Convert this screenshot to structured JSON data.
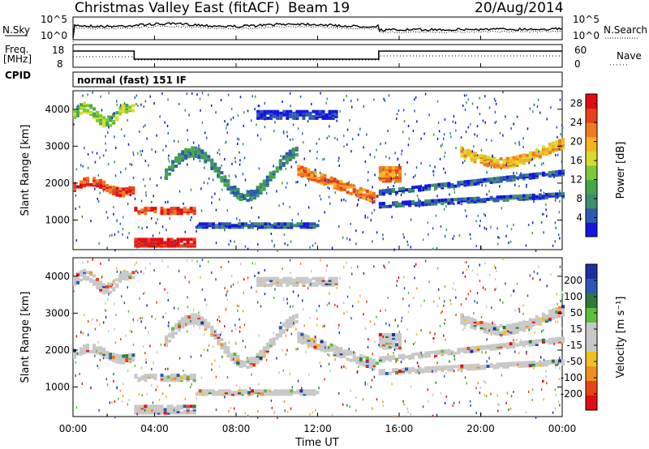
{
  "header": {
    "title": "Christmas Valley East (fitACF)",
    "beam": "Beam 19",
    "date": "20/Aug/2014"
  },
  "top_panels": {
    "nsky_label": "N.Sky",
    "nsearch_label": "N.Search",
    "freq_label_line1": "Freq.",
    "freq_label_line2": "[MHz]",
    "nave_label": "Nave",
    "cpid_label": "CPID",
    "cpid_value": "normal (fast) 151 IF",
    "noise_left_ticks": [
      "10^5",
      "10^0"
    ],
    "noise_right_ticks": [
      "10^5",
      "10^0"
    ],
    "freq_left_ticks": [
      "18",
      "8"
    ],
    "freq_right_ticks": [
      "60",
      "0"
    ]
  },
  "colors": {
    "power_scale": [
      "#1414e0",
      "#2b5bb0",
      "#3f8f6a",
      "#45a648",
      "#7ec83c",
      "#d8dc2a",
      "#f6b221",
      "#f07a1e",
      "#e8401a",
      "#e00d12"
    ],
    "velocity_scale": [
      "#1e2fa6",
      "#2c57b5",
      "#2f7a3a",
      "#5bbf3a",
      "#c8c8c8",
      "#c8c8c8",
      "#f0c020",
      "#f09020",
      "#e84418",
      "#e00d12"
    ]
  },
  "chart_data": [
    {
      "type": "heatmap",
      "name": "power",
      "ylabel": "Slant Range [km]",
      "yticks": [
        "1000",
        "2000",
        "3000",
        "4000"
      ],
      "ylim": [
        200,
        4500
      ],
      "colorbar_label": "Power [dB]",
      "colorbar_ticks": [
        "4",
        "8",
        "12",
        "16",
        "20",
        "24",
        "28"
      ],
      "colorbar_range": [
        0,
        30
      ]
    },
    {
      "type": "heatmap",
      "name": "velocity",
      "ylabel": "Slant Range [km]",
      "yticks": [
        "1000",
        "2000",
        "3000",
        "4000"
      ],
      "ylim": [
        200,
        4500
      ],
      "colorbar_label": "Velocity [m s⁻¹]",
      "colorbar_ticks": [
        "200",
        "100",
        "50",
        "15",
        "-15",
        "-50",
        "-100",
        "-200"
      ]
    }
  ],
  "x_axis": {
    "label": "Time UT",
    "ticks": [
      "00:00",
      "04:00",
      "08:00",
      "12:00",
      "16:00",
      "20:00",
      "00:00"
    ],
    "range_hours": [
      0,
      24
    ]
  }
}
